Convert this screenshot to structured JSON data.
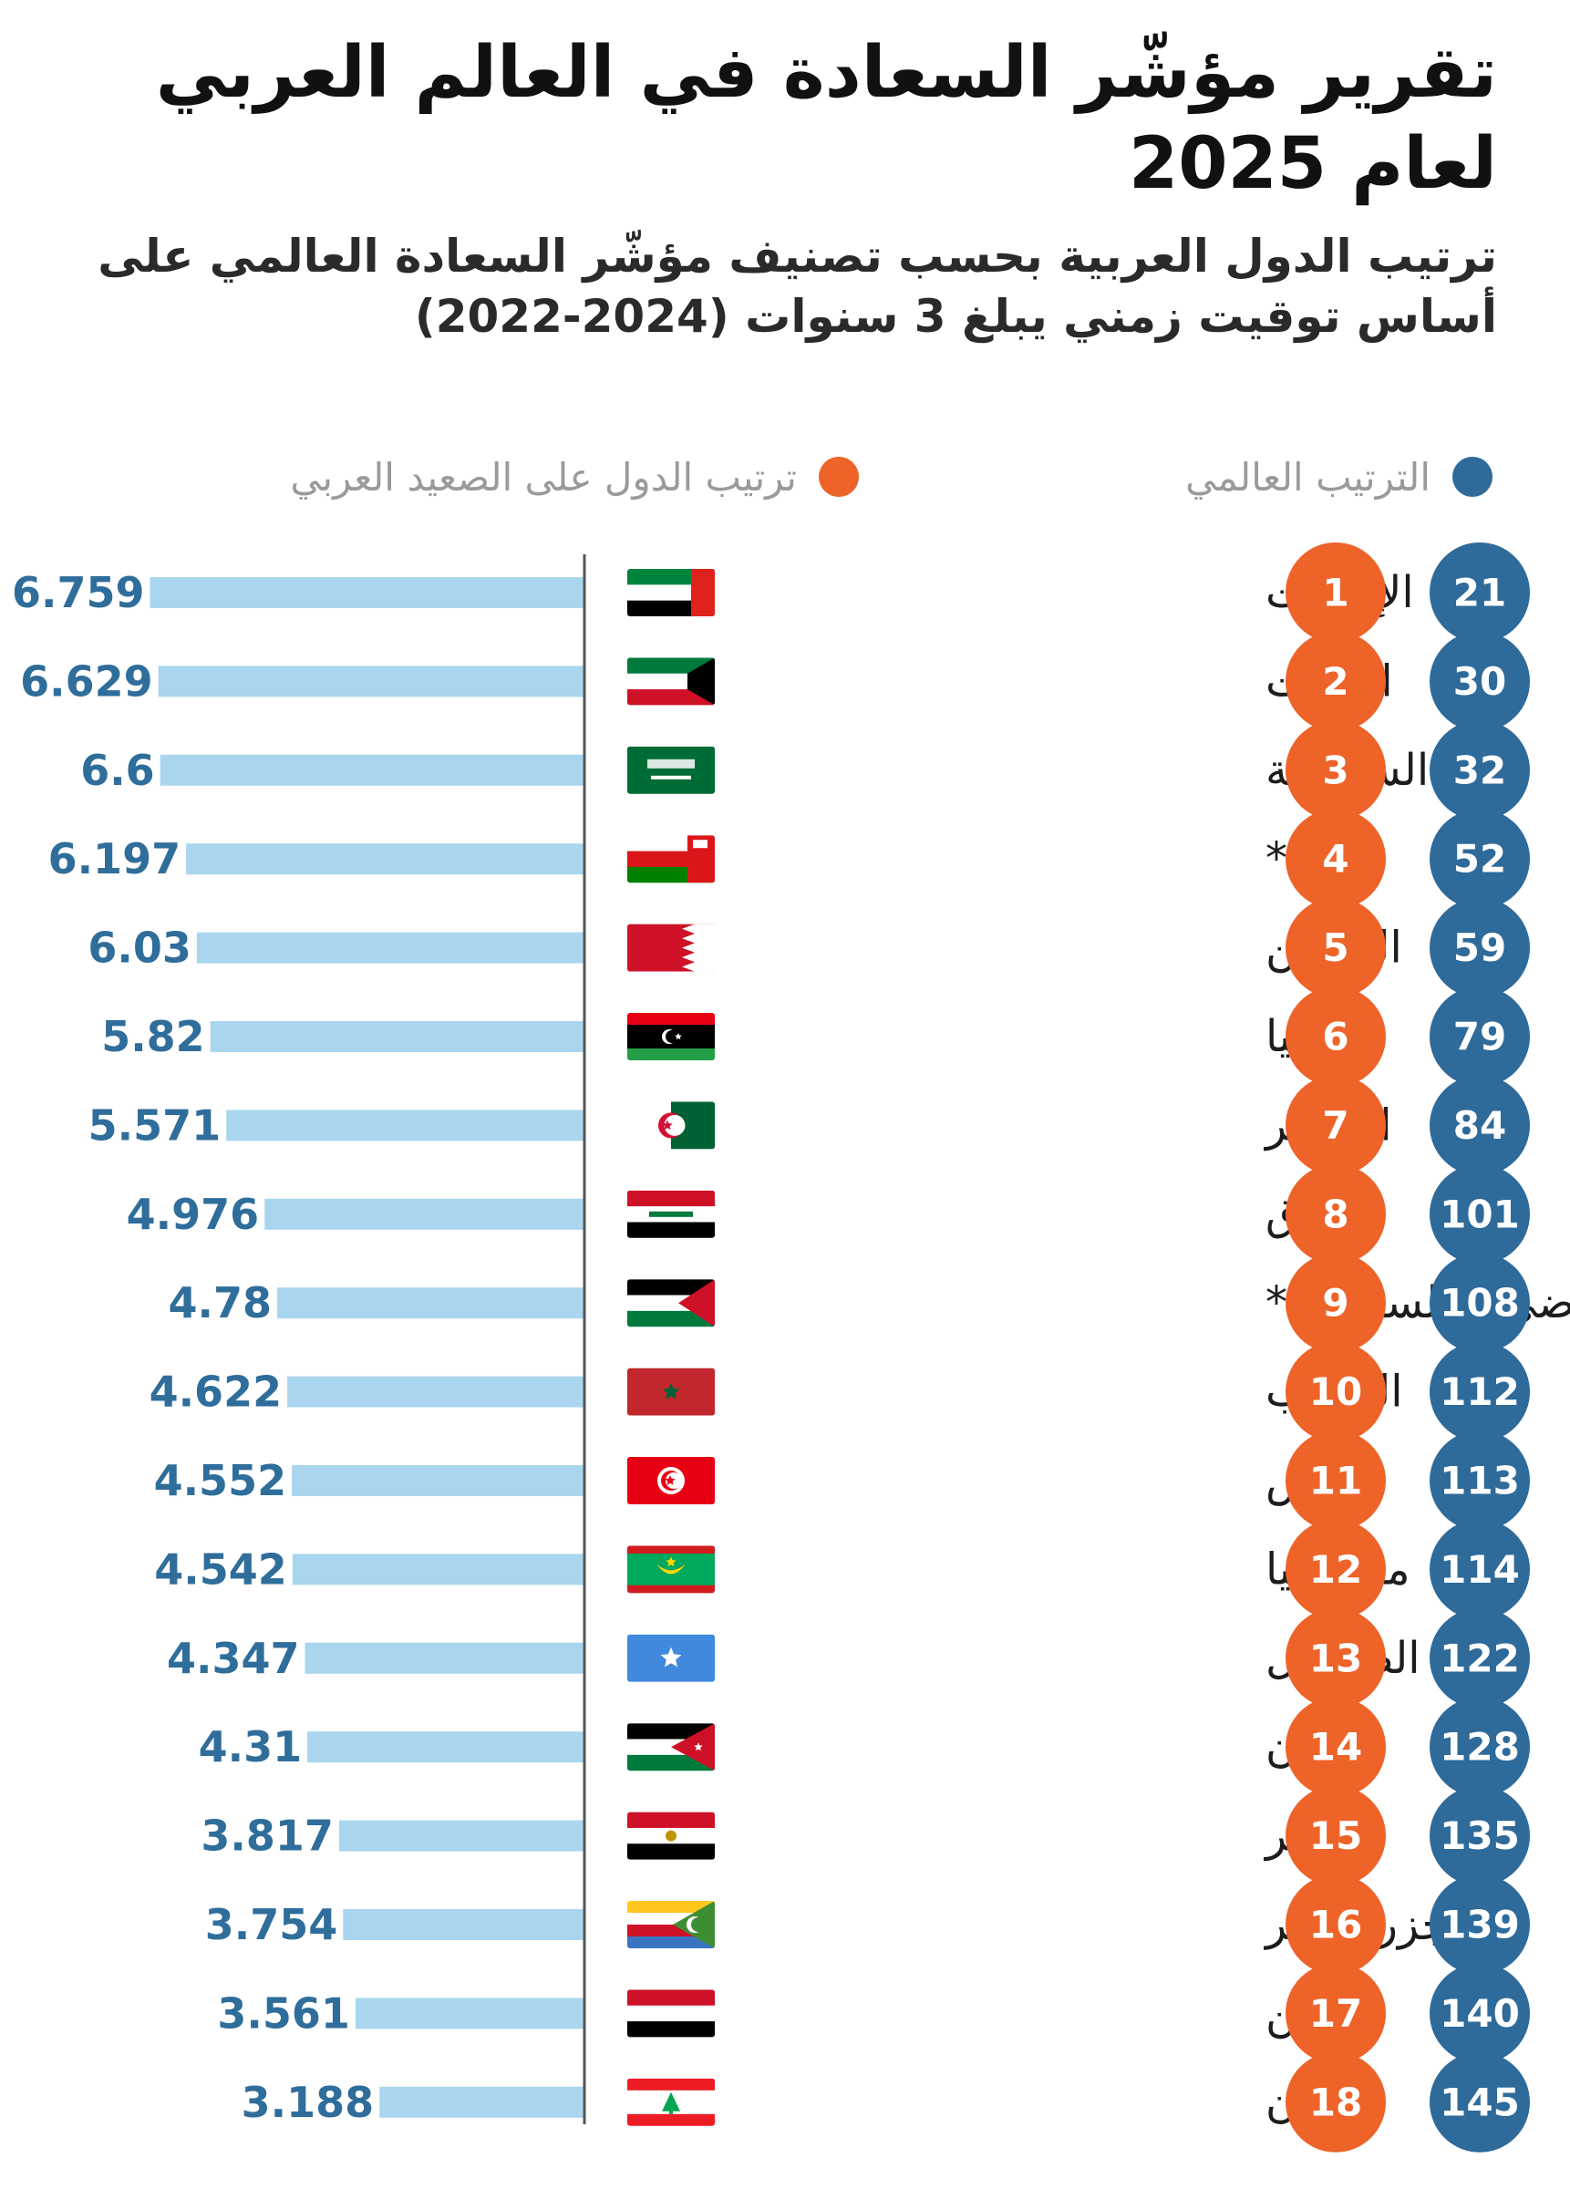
{
  "title": "تقرير مؤشّر السعادة في العالم العربي لعام 2025",
  "subtitle": "ترتيب الدول العربية بحسب تصنيف مؤشّر السعادة العالمي على أساس توقيت زمني يبلغ 3 سنوات (2024-2022)",
  "legend": {
    "world_rank": "الترتيب العالمي",
    "arab_rank": "ترتيب الدول على الصعيد العربي"
  },
  "colors": {
    "bar": "#a9d6ee",
    "value_text": "#2f6d9b",
    "world_circle": "#2e6a9a",
    "arab_circle": "#ee6328",
    "axis": "#555555",
    "country_text": "#1c1c1c",
    "legend_text": "#9a9a9a"
  },
  "chart_data": {
    "type": "bar",
    "orientation": "horizontal",
    "title": "تقرير مؤشّر السعادة في العالم العربي لعام 2025",
    "xlim": [
      0,
      7
    ],
    "categories": [
      "الإمارات",
      "الكويت",
      "السعودية",
      "عُمان*",
      "البحرين",
      "ليبيا",
      "الجزائر",
      "العراق",
      "الأراضي الفلسطينية*",
      "المغرب",
      "تونس",
      "موريتانيا",
      "الصومال",
      "الأردن",
      "مصر",
      "جزر القمر",
      "اليمن",
      "لبنان"
    ],
    "values": [
      6.759,
      6.629,
      6.6,
      6.197,
      6.03,
      5.82,
      5.571,
      4.976,
      4.78,
      4.622,
      4.552,
      4.542,
      4.347,
      4.31,
      3.817,
      3.754,
      3.561,
      3.188
    ],
    "value_labels": [
      "6.759",
      "6.629",
      "6.6",
      "6.197",
      "6.03",
      "5.82",
      "5.571",
      "4.976",
      "4.78",
      "4.622",
      "4.552",
      "4.542",
      "4.347",
      "4.31",
      "3.817",
      "3.754",
      "3.561",
      "3.188"
    ],
    "arab_rank": [
      "1",
      "2",
      "3",
      "4",
      "5",
      "6",
      "7",
      "8",
      "9",
      "10",
      "11",
      "12",
      "13",
      "14",
      "15",
      "16",
      "17",
      "18"
    ],
    "world_rank": [
      "21",
      "30",
      "32",
      "52",
      "59",
      "79",
      "84",
      "101",
      "108",
      "112",
      "113",
      "114",
      "122",
      "128",
      "135",
      "139",
      "140",
      "145"
    ],
    "flags": [
      "uae-flag-icon",
      "kuwait-flag-icon",
      "saudi-flag-icon",
      "oman-flag-icon",
      "bahrain-flag-icon",
      "libya-flag-icon",
      "algeria-flag-icon",
      "iraq-flag-icon",
      "palestine-flag-icon",
      "morocco-flag-icon",
      "tunisia-flag-icon",
      "mauritania-flag-icon",
      "somalia-flag-icon",
      "jordan-flag-icon",
      "egypt-flag-icon",
      "comoros-flag-icon",
      "yemen-flag-icon",
      "lebanon-flag-icon"
    ]
  }
}
